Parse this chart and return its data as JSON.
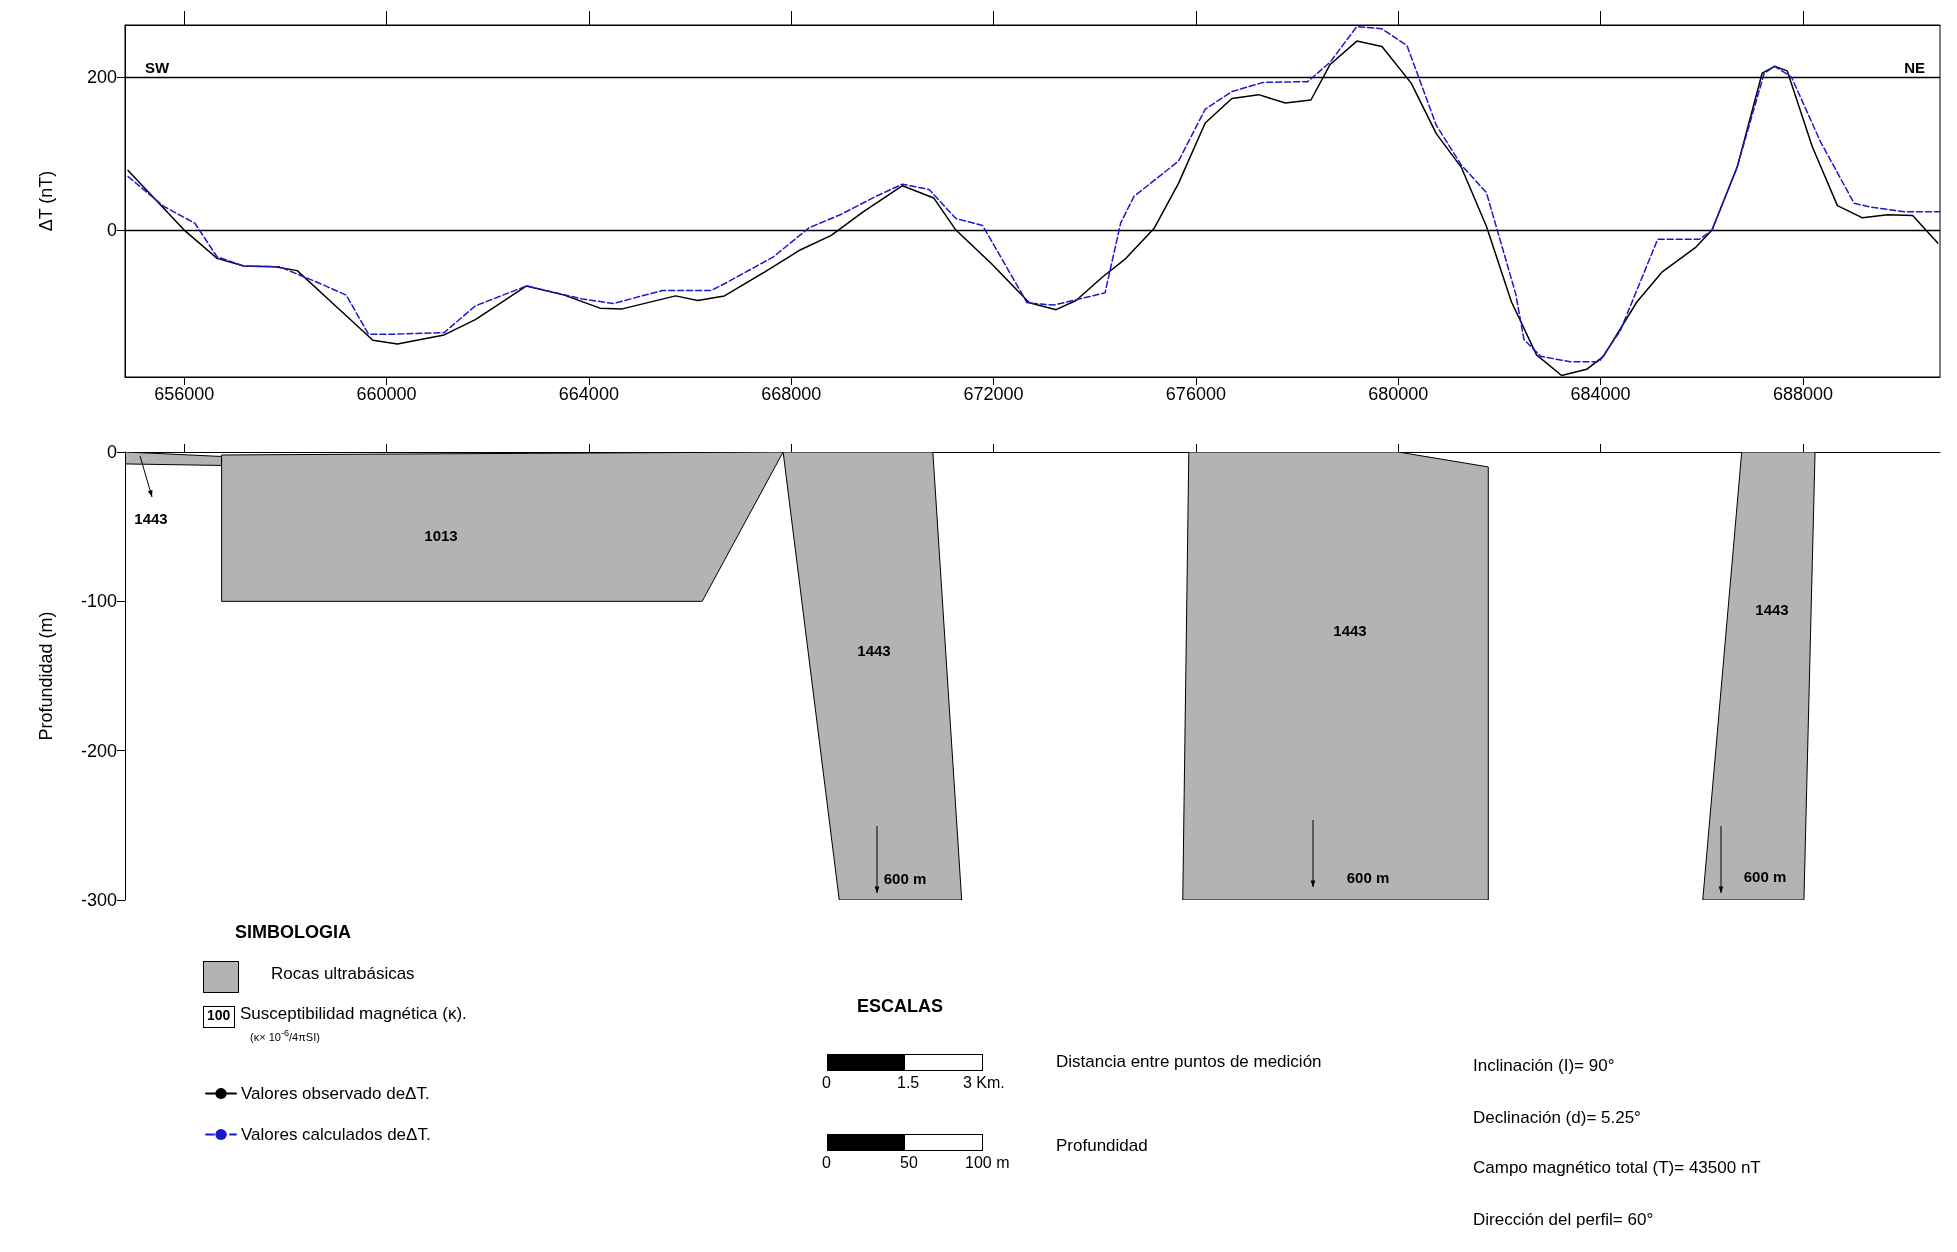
{
  "chart_data": [
    {
      "type": "line",
      "ylabel": "ΔT (nT)",
      "xlim": [
        654830,
        690710
      ],
      "ylim": [
        -192,
        268
      ],
      "xticks": [
        656000,
        660000,
        664000,
        668000,
        672000,
        676000,
        680000,
        684000,
        688000
      ],
      "yticks": [
        0,
        200
      ],
      "grid": "y",
      "legend": "bottom left",
      "annotations": [
        "SW",
        "NE"
      ],
      "series": [
        {
          "name": "Valores observado deΔT.",
          "color": "#000000",
          "line_style": "solid",
          "x": [
            654891,
            656000,
            656651,
            657179,
            657795,
            658235,
            658940,
            659731,
            660215,
            661139,
            661755,
            662767,
            663515,
            664219,
            664659,
            665715,
            666152,
            666680,
            667472,
            668176,
            668792,
            669408,
            670200,
            670816,
            671256,
            671960,
            672708,
            673236,
            673632,
            674160,
            674600,
            675172,
            675656,
            676184,
            676712,
            677240,
            677768,
            678274,
            678648,
            679182,
            679678,
            680256,
            680752,
            681247,
            681743,
            682239,
            682734,
            683230,
            683725,
            684056,
            684717,
            685212,
            685873,
            686203,
            686699,
            687194,
            687442,
            687690,
            688186,
            688682,
            689178,
            689673,
            690169,
            690665
          ],
          "values": [
            78,
            0,
            -37,
            -47,
            -48,
            -53,
            -96,
            -144,
            -149,
            -137,
            -117,
            -73,
            -85,
            -102,
            -103,
            -86,
            -92,
            -86,
            -55,
            -26,
            -7,
            23,
            58,
            42,
            0,
            -44,
            -95,
            -104,
            -92,
            -61,
            -38,
            2,
            61,
            140,
            172,
            177,
            166,
            170,
            216,
            247,
            240,
            192,
            126,
            82,
            5,
            -94,
            -163,
            -190,
            -182,
            -165,
            -94,
            -55,
            -23,
            0,
            82,
            205,
            214,
            208,
            109,
            32,
            16,
            20,
            19,
            -17
          ]
        },
        {
          "name": "Valores calculados deΔT.",
          "color": "#1a1acc",
          "line_style": "dashed",
          "x": [
            654891,
            655595,
            656211,
            656651,
            657179,
            657883,
            658587,
            659203,
            659643,
            660171,
            661139,
            661755,
            662767,
            663867,
            664483,
            665451,
            665800,
            666416,
            666768,
            667648,
            668352,
            668968,
            669672,
            670200,
            670728,
            671256,
            671784,
            672664,
            673192,
            674204,
            674512,
            674776,
            675656,
            676184,
            676712,
            677328,
            678208,
            678648,
            679182,
            679678,
            680174,
            680752,
            681247,
            681743,
            682321,
            682486,
            682817,
            683395,
            683973,
            684386,
            685129,
            685955,
            686203,
            686699,
            687235,
            687442,
            687773,
            688351,
            689012,
            689343,
            690004,
            690706
          ],
          "values": [
            70,
            31,
            9,
            -35,
            -47,
            -48,
            -67,
            -85,
            -136,
            -136,
            -134,
            -99,
            -73,
            -90,
            -96,
            -79,
            -79,
            -79,
            -67,
            -35,
            3,
            20,
            44,
            60,
            53,
            15,
            6,
            -95,
            -98,
            -82,
            9,
            44,
            90,
            158,
            181,
            193,
            194,
            219,
            266,
            263,
            241,
            137,
            85,
            49,
            -83,
            -143,
            -165,
            -172,
            -172,
            -132,
            -12,
            -12,
            0,
            82,
            205,
            214,
            200,
            115,
            35,
            30,
            24,
            24
          ]
        }
      ]
    },
    {
      "type": "area",
      "ylabel": "Profundidad (m)",
      "xlim": [
        654830,
        690710
      ],
      "ylim": [
        -300,
        0
      ],
      "xticks": [
        656000,
        660000,
        664000,
        668000,
        672000,
        676000,
        680000,
        684000,
        688000
      ],
      "yticks": [
        -300,
        -200,
        -100,
        0
      ],
      "tick_labels": "y",
      "annotations": [
        "1443",
        "1013",
        "1443",
        "1443",
        "1443",
        "600 m",
        "600 m",
        "600 m"
      ],
      "series": [
        {
          "color": "#b3b3b3",
          "x": [
            654840,
            656740,
            656740,
            654840
          ],
          "values": [
            0,
            -3,
            -9,
            -8
          ]
        },
        {
          "color": "#b3b3b3",
          "x": [
            656740,
            667840,
            666240,
            656740
          ],
          "values": [
            -2,
            0,
            -100,
            -100
          ]
        },
        {
          "color": "#b3b3b3",
          "x": [
            667840,
            670800,
            671370,
            668950
          ],
          "values": [
            0,
            0,
            -300,
            -300
          ]
        },
        {
          "color": "#b3b3b3",
          "x": [
            675860,
            680000,
            681780,
            681780,
            675740
          ],
          "values": [
            0,
            0,
            -10,
            -300,
            -300
          ]
        },
        {
          "color": "#b3b3b3",
          "x": [
            686790,
            688240,
            688020,
            686020
          ],
          "values": [
            0,
            0,
            -300,
            -300
          ]
        }
      ]
    },
    {
      "type": "other",
      "annotations": [
        "SIMBOLOGIA",
        "Rocas ultrabásicas",
        "100",
        "Susceptibilidad magnética (κ).",
        "(κ× 10$^{-6}$/4πSI)",
        "ESCALAS",
        "0",
        "1.5",
        "3 Km.",
        "Distancia entre puntos de medición",
        "0",
        "50",
        "100 m",
        "Profundidad",
        "Inclinación (I)= 90°",
        "Declinación (d)= 5.25°",
        "Campo magnético total (T)= 43500 nT",
        "Dirección del perfil= 60°"
      ]
    }
  ]
}
